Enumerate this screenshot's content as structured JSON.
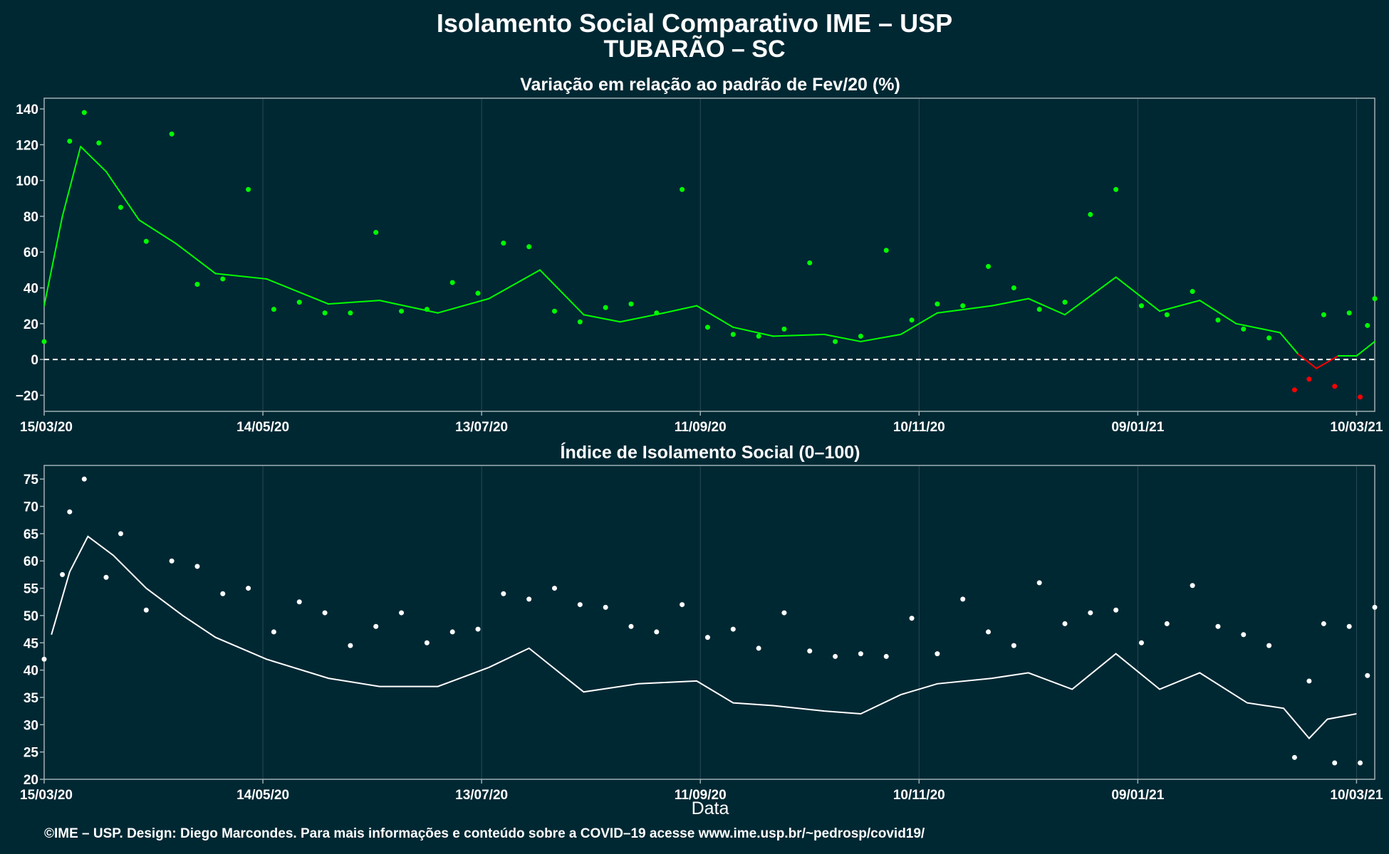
{
  "title": "Isolamento Social Comparativo IME – USP",
  "subtitle": "TUBARÃO – SC",
  "footer": "©IME – USP. Design: Diego Marcondes. Para mais informações e conteúdo sobre a COVID–19 acesse www.ime.usp.br/~pedrosp/covid19/",
  "colors": {
    "background": "#002833",
    "positive": "#00ff00",
    "negative": "#ff0000",
    "index": "#ffffff",
    "grid": "#2a4a54",
    "axis": "#9fb0b5"
  },
  "chart_data": [
    {
      "type": "scatter",
      "title": "Variação em relação ao padrão de Fev/20 (%)",
      "x_start": "15/03/20",
      "x_end": "15/03/21",
      "x_tick_labels": [
        "15/03/20",
        "14/05/20",
        "13/07/20",
        "11/09/20",
        "10/11/20",
        "09/01/21",
        "10/03/21"
      ],
      "x_tick_dates": [
        "2020-03-15",
        "2020-05-14",
        "2020-07-13",
        "2020-09-11",
        "2020-11-10",
        "2021-01-09",
        "2021-03-10"
      ],
      "y_ticks": [
        -20,
        0,
        20,
        40,
        60,
        80,
        100,
        120,
        140
      ],
      "ylim": [
        -29,
        146
      ],
      "reference_line": 0,
      "grid": true,
      "series": [
        {
          "points": [
            {
              "date": "2020-03-15",
              "value": 10
            },
            {
              "date": "2020-03-22",
              "value": 122
            },
            {
              "date": "2020-03-26",
              "value": 138
            },
            {
              "date": "2020-03-30",
              "value": 121
            },
            {
              "date": "2020-04-05",
              "value": 85
            },
            {
              "date": "2020-04-12",
              "value": 66
            },
            {
              "date": "2020-04-19",
              "value": 126
            },
            {
              "date": "2020-04-26",
              "value": 42
            },
            {
              "date": "2020-05-03",
              "value": 45
            },
            {
              "date": "2020-05-10",
              "value": 95
            },
            {
              "date": "2020-05-17",
              "value": 28
            },
            {
              "date": "2020-05-24",
              "value": 32
            },
            {
              "date": "2020-05-31",
              "value": 26
            },
            {
              "date": "2020-06-07",
              "value": 26
            },
            {
              "date": "2020-06-14",
              "value": 71
            },
            {
              "date": "2020-06-21",
              "value": 27
            },
            {
              "date": "2020-06-28",
              "value": 28
            },
            {
              "date": "2020-07-05",
              "value": 43
            },
            {
              "date": "2020-07-12",
              "value": 37
            },
            {
              "date": "2020-07-19",
              "value": 65
            },
            {
              "date": "2020-07-26",
              "value": 63
            },
            {
              "date": "2020-08-02",
              "value": 27
            },
            {
              "date": "2020-08-09",
              "value": 21
            },
            {
              "date": "2020-08-16",
              "value": 29
            },
            {
              "date": "2020-08-23",
              "value": 31
            },
            {
              "date": "2020-08-30",
              "value": 26
            },
            {
              "date": "2020-09-06",
              "value": 95
            },
            {
              "date": "2020-09-13",
              "value": 18
            },
            {
              "date": "2020-09-20",
              "value": 14
            },
            {
              "date": "2020-09-27",
              "value": 13
            },
            {
              "date": "2020-10-04",
              "value": 17
            },
            {
              "date": "2020-10-11",
              "value": 54
            },
            {
              "date": "2020-10-18",
              "value": 10
            },
            {
              "date": "2020-10-25",
              "value": 13
            },
            {
              "date": "2020-11-01",
              "value": 61
            },
            {
              "date": "2020-11-08",
              "value": 22
            },
            {
              "date": "2020-11-15",
              "value": 31
            },
            {
              "date": "2020-11-22",
              "value": 30
            },
            {
              "date": "2020-11-29",
              "value": 52
            },
            {
              "date": "2020-12-06",
              "value": 40
            },
            {
              "date": "2020-12-13",
              "value": 28
            },
            {
              "date": "2020-12-20",
              "value": 32
            },
            {
              "date": "2020-12-27",
              "value": 81
            },
            {
              "date": "2021-01-03",
              "value": 95
            },
            {
              "date": "2021-01-10",
              "value": 30
            },
            {
              "date": "2021-01-17",
              "value": 25
            },
            {
              "date": "2021-01-24",
              "value": 38
            },
            {
              "date": "2021-01-31",
              "value": 22
            },
            {
              "date": "2021-02-07",
              "value": 17
            },
            {
              "date": "2021-02-14",
              "value": 12
            },
            {
              "date": "2021-02-21",
              "value": -17
            },
            {
              "date": "2021-02-25",
              "value": -11
            },
            {
              "date": "2021-03-01",
              "value": 25
            },
            {
              "date": "2021-03-04",
              "value": -15
            },
            {
              "date": "2021-03-08",
              "value": 26
            },
            {
              "date": "2021-03-11",
              "value": -21
            },
            {
              "date": "2021-03-13",
              "value": 19
            },
            {
              "date": "2021-03-15",
              "value": 34
            }
          ],
          "moving_average": [
            {
              "date": "2020-03-15",
              "value": 30
            },
            {
              "date": "2020-03-20",
              "value": 80
            },
            {
              "date": "2020-03-25",
              "value": 119
            },
            {
              "date": "2020-04-01",
              "value": 105
            },
            {
              "date": "2020-04-10",
              "value": 78
            },
            {
              "date": "2020-04-20",
              "value": 65
            },
            {
              "date": "2020-05-01",
              "value": 48
            },
            {
              "date": "2020-05-15",
              "value": 45
            },
            {
              "date": "2020-06-01",
              "value": 31
            },
            {
              "date": "2020-06-15",
              "value": 33
            },
            {
              "date": "2020-07-01",
              "value": 26
            },
            {
              "date": "2020-07-15",
              "value": 34
            },
            {
              "date": "2020-07-29",
              "value": 50
            },
            {
              "date": "2020-08-10",
              "value": 25
            },
            {
              "date": "2020-08-20",
              "value": 21
            },
            {
              "date": "2020-09-01",
              "value": 26
            },
            {
              "date": "2020-09-10",
              "value": 30
            },
            {
              "date": "2020-09-20",
              "value": 18
            },
            {
              "date": "2020-10-01",
              "value": 13
            },
            {
              "date": "2020-10-15",
              "value": 14
            },
            {
              "date": "2020-10-25",
              "value": 10
            },
            {
              "date": "2020-11-05",
              "value": 14
            },
            {
              "date": "2020-11-15",
              "value": 26
            },
            {
              "date": "2020-11-30",
              "value": 30
            },
            {
              "date": "2020-12-10",
              "value": 34
            },
            {
              "date": "2020-12-20",
              "value": 25
            },
            {
              "date": "2021-01-03",
              "value": 46
            },
            {
              "date": "2021-01-15",
              "value": 27
            },
            {
              "date": "2021-01-26",
              "value": 33
            },
            {
              "date": "2021-02-05",
              "value": 20
            },
            {
              "date": "2021-02-17",
              "value": 15
            },
            {
              "date": "2021-02-22",
              "value": 3
            },
            {
              "date": "2021-02-27",
              "value": -5
            },
            {
              "date": "2021-03-05",
              "value": 2
            },
            {
              "date": "2021-03-10",
              "value": 2
            },
            {
              "date": "2021-03-15",
              "value": 10
            }
          ]
        }
      ]
    },
    {
      "type": "scatter",
      "title": "Índice de Isolamento Social (0–100)",
      "xlabel": "Data",
      "x_start": "15/03/20",
      "x_end": "15/03/21",
      "x_tick_labels": [
        "15/03/20",
        "14/05/20",
        "13/07/20",
        "11/09/20",
        "10/11/20",
        "09/01/21",
        "10/03/21"
      ],
      "x_tick_dates": [
        "2020-03-15",
        "2020-05-14",
        "2020-07-13",
        "2020-09-11",
        "2020-11-10",
        "2021-01-09",
        "2021-03-10"
      ],
      "y_ticks": [
        20,
        25,
        30,
        35,
        40,
        45,
        50,
        55,
        60,
        65,
        70,
        75
      ],
      "ylim": [
        20,
        77.5
      ],
      "grid": true,
      "series": [
        {
          "points": [
            {
              "date": "2020-03-15",
              "value": 42
            },
            {
              "date": "2020-03-20",
              "value": 57.5
            },
            {
              "date": "2020-03-22",
              "value": 69
            },
            {
              "date": "2020-03-26",
              "value": 75
            },
            {
              "date": "2020-04-01",
              "value": 57
            },
            {
              "date": "2020-04-05",
              "value": 65
            },
            {
              "date": "2020-04-12",
              "value": 51
            },
            {
              "date": "2020-04-19",
              "value": 60
            },
            {
              "date": "2020-04-26",
              "value": 59
            },
            {
              "date": "2020-05-03",
              "value": 54
            },
            {
              "date": "2020-05-10",
              "value": 55
            },
            {
              "date": "2020-05-17",
              "value": 47
            },
            {
              "date": "2020-05-24",
              "value": 52.5
            },
            {
              "date": "2020-05-31",
              "value": 50.5
            },
            {
              "date": "2020-06-07",
              "value": 44.5
            },
            {
              "date": "2020-06-14",
              "value": 48
            },
            {
              "date": "2020-06-21",
              "value": 50.5
            },
            {
              "date": "2020-06-28",
              "value": 45
            },
            {
              "date": "2020-07-05",
              "value": 47
            },
            {
              "date": "2020-07-12",
              "value": 47.5
            },
            {
              "date": "2020-07-19",
              "value": 54
            },
            {
              "date": "2020-07-26",
              "value": 53
            },
            {
              "date": "2020-08-02",
              "value": 55
            },
            {
              "date": "2020-08-09",
              "value": 52
            },
            {
              "date": "2020-08-16",
              "value": 51.5
            },
            {
              "date": "2020-08-23",
              "value": 48
            },
            {
              "date": "2020-08-30",
              "value": 47
            },
            {
              "date": "2020-09-06",
              "value": 52
            },
            {
              "date": "2020-09-13",
              "value": 46
            },
            {
              "date": "2020-09-20",
              "value": 47.5
            },
            {
              "date": "2020-09-27",
              "value": 44
            },
            {
              "date": "2020-10-04",
              "value": 50.5
            },
            {
              "date": "2020-10-11",
              "value": 43.5
            },
            {
              "date": "2020-10-18",
              "value": 42.5
            },
            {
              "date": "2020-10-25",
              "value": 43
            },
            {
              "date": "2020-11-01",
              "value": 42.5
            },
            {
              "date": "2020-11-08",
              "value": 49.5
            },
            {
              "date": "2020-11-15",
              "value": 43
            },
            {
              "date": "2020-11-22",
              "value": 53
            },
            {
              "date": "2020-11-29",
              "value": 47
            },
            {
              "date": "2020-12-06",
              "value": 44.5
            },
            {
              "date": "2020-12-13",
              "value": 56
            },
            {
              "date": "2020-12-20",
              "value": 48.5
            },
            {
              "date": "2020-12-27",
              "value": 50.5
            },
            {
              "date": "2021-01-03",
              "value": 51
            },
            {
              "date": "2021-01-10",
              "value": 45
            },
            {
              "date": "2021-01-17",
              "value": 48.5
            },
            {
              "date": "2021-01-24",
              "value": 55.5
            },
            {
              "date": "2021-01-31",
              "value": 48
            },
            {
              "date": "2021-02-07",
              "value": 46.5
            },
            {
              "date": "2021-02-14",
              "value": 44.5
            },
            {
              "date": "2021-02-21",
              "value": 24
            },
            {
              "date": "2021-02-25",
              "value": 38
            },
            {
              "date": "2021-03-01",
              "value": 48.5
            },
            {
              "date": "2021-03-04",
              "value": 23
            },
            {
              "date": "2021-03-08",
              "value": 48
            },
            {
              "date": "2021-03-11",
              "value": 23
            },
            {
              "date": "2021-03-13",
              "value": 39
            },
            {
              "date": "2021-03-15",
              "value": 51.5
            }
          ],
          "moving_average": [
            {
              "date": "2020-03-17",
              "value": 46.5
            },
            {
              "date": "2020-03-22",
              "value": 58
            },
            {
              "date": "2020-03-27",
              "value": 64.5
            },
            {
              "date": "2020-04-03",
              "value": 61
            },
            {
              "date": "2020-04-12",
              "value": 55
            },
            {
              "date": "2020-04-22",
              "value": 50
            },
            {
              "date": "2020-05-01",
              "value": 46
            },
            {
              "date": "2020-05-15",
              "value": 42
            },
            {
              "date": "2020-06-01",
              "value": 38.5
            },
            {
              "date": "2020-06-15",
              "value": 37
            },
            {
              "date": "2020-07-01",
              "value": 37
            },
            {
              "date": "2020-07-15",
              "value": 40.5
            },
            {
              "date": "2020-07-26",
              "value": 44
            },
            {
              "date": "2020-08-10",
              "value": 36
            },
            {
              "date": "2020-08-25",
              "value": 37.5
            },
            {
              "date": "2020-09-10",
              "value": 38
            },
            {
              "date": "2020-09-20",
              "value": 34
            },
            {
              "date": "2020-10-01",
              "value": 33.5
            },
            {
              "date": "2020-10-15",
              "value": 32.5
            },
            {
              "date": "2020-10-25",
              "value": 32
            },
            {
              "date": "2020-11-05",
              "value": 35.5
            },
            {
              "date": "2020-11-15",
              "value": 37.5
            },
            {
              "date": "2020-11-30",
              "value": 38.5
            },
            {
              "date": "2020-12-10",
              "value": 39.5
            },
            {
              "date": "2020-12-22",
              "value": 36.5
            },
            {
              "date": "2021-01-03",
              "value": 43
            },
            {
              "date": "2021-01-15",
              "value": 36.5
            },
            {
              "date": "2021-01-26",
              "value": 39.5
            },
            {
              "date": "2021-02-08",
              "value": 34
            },
            {
              "date": "2021-02-18",
              "value": 33
            },
            {
              "date": "2021-02-25",
              "value": 27.5
            },
            {
              "date": "2021-03-02",
              "value": 31
            },
            {
              "date": "2021-03-10",
              "value": 32
            }
          ]
        }
      ]
    }
  ]
}
